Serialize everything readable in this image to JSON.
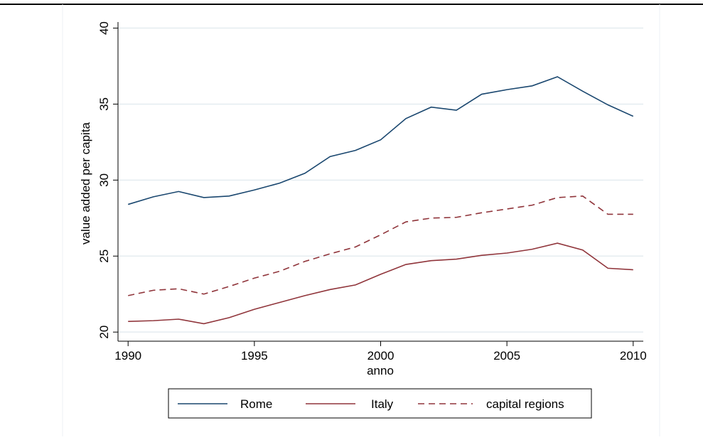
{
  "chart_data": {
    "type": "line",
    "x_label": "anno",
    "y_label": "value added per capita",
    "x": [
      1990,
      1991,
      1992,
      1993,
      1994,
      1995,
      1996,
      1997,
      1998,
      1999,
      2000,
      2001,
      2002,
      2003,
      2004,
      2005,
      2006,
      2007,
      2008,
      2009,
      2010
    ],
    "series": [
      {
        "name": "Rome",
        "color": "#1a476f",
        "style": "solid",
        "values": [
          28.4,
          28.9,
          29.25,
          28.85,
          28.95,
          29.35,
          29.8,
          30.45,
          31.55,
          31.95,
          32.65,
          34.05,
          34.8,
          34.6,
          35.65,
          35.95,
          36.2,
          36.8,
          35.85,
          34.95,
          34.2
        ]
      },
      {
        "name": "Italy",
        "color": "#90353b",
        "style": "solid",
        "values": [
          20.7,
          20.75,
          20.85,
          20.55,
          20.95,
          21.5,
          21.95,
          22.4,
          22.8,
          23.1,
          23.8,
          24.45,
          24.7,
          24.8,
          25.05,
          25.2,
          25.45,
          25.85,
          25.4,
          24.2,
          24.1
        ]
      },
      {
        "name": "capital regions",
        "color": "#90353b",
        "style": "dashed",
        "values": [
          22.4,
          22.75,
          22.85,
          22.5,
          23.0,
          23.55,
          24.0,
          24.65,
          25.15,
          25.6,
          26.4,
          27.25,
          27.5,
          27.55,
          27.85,
          28.1,
          28.35,
          28.85,
          28.95,
          27.75,
          27.75
        ]
      }
    ],
    "xlim": [
      1989.6,
      2010.4
    ],
    "xticks": [
      1990,
      1995,
      2000,
      2005,
      2010
    ],
    "ylim": [
      19.4,
      40.4
    ],
    "yticks": [
      20,
      25,
      30,
      35,
      40
    ],
    "grid": true,
    "legend": "bottom"
  }
}
